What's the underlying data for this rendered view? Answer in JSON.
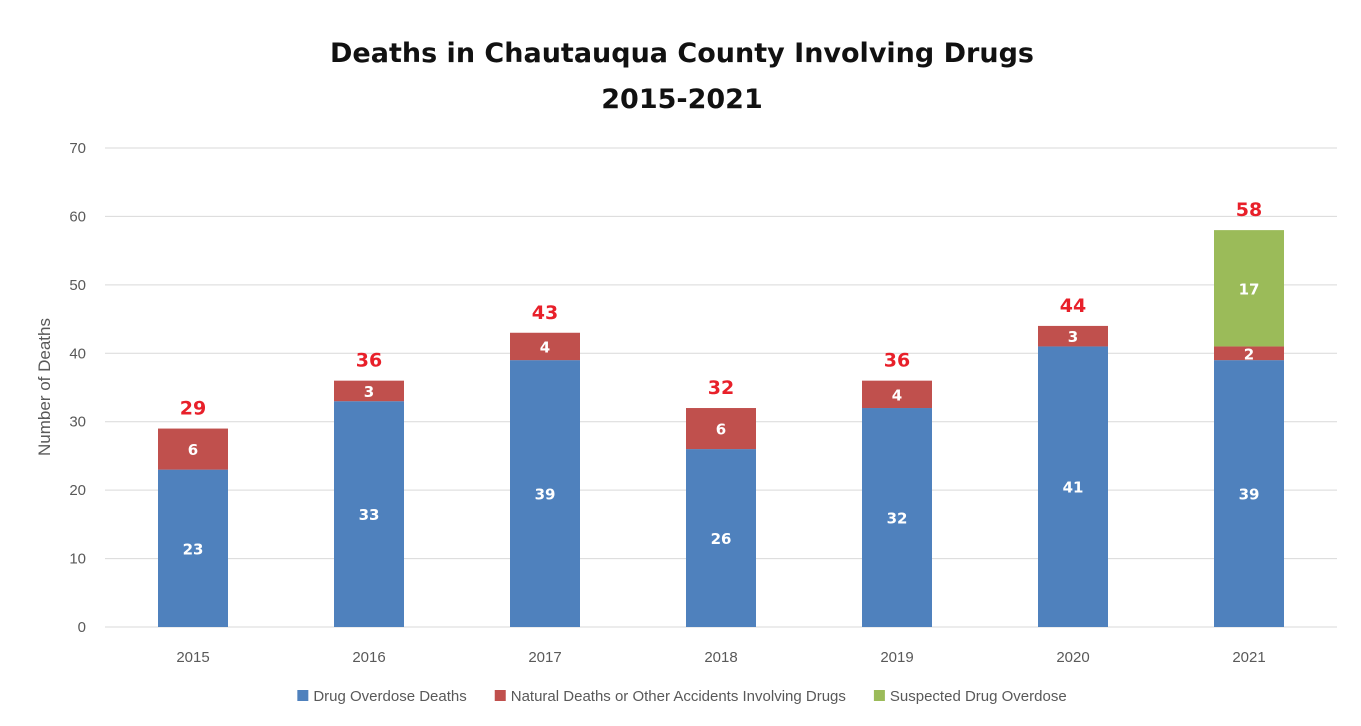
{
  "chart_data": {
    "type": "bar",
    "stacked": true,
    "title": "Deaths in Chautauqua County Involving Drugs",
    "subtitle": "2015-2021",
    "xlabel": "",
    "ylabel": "Number of Deaths",
    "ylim": [
      0,
      70
    ],
    "ytick_step": 10,
    "grid": true,
    "legend_position": "bottom",
    "categories": [
      "2015",
      "2016",
      "2017",
      "2018",
      "2019",
      "2020",
      "2021"
    ],
    "series": [
      {
        "name": "Drug Overdose Deaths",
        "color": "#4f81bd",
        "values": [
          23,
          33,
          39,
          26,
          32,
          41,
          39
        ]
      },
      {
        "name": "Natural Deaths or Other Accidents Involving Drugs",
        "color": "#c0504d",
        "values": [
          6,
          3,
          4,
          6,
          4,
          3,
          2
        ]
      },
      {
        "name": "Suspected Drug Overdose",
        "color": "#9bbb59",
        "values": [
          0,
          0,
          0,
          0,
          0,
          0,
          17
        ]
      }
    ],
    "totals": [
      29,
      36,
      43,
      32,
      36,
      44,
      58
    ],
    "totals_color": "#e8202a"
  }
}
